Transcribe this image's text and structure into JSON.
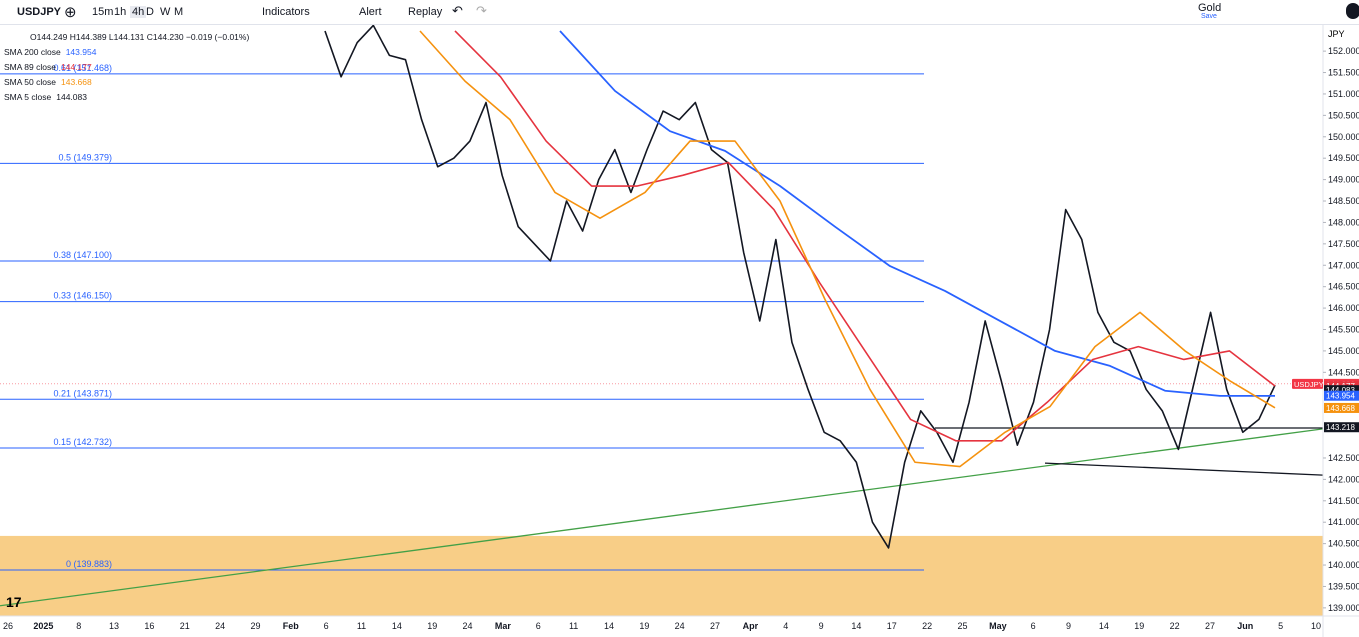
{
  "toolbar": {
    "symbol": "USDJPY",
    "intervals": [
      "15m",
      "1h",
      "4h",
      "D",
      "W",
      "M"
    ],
    "indicators": "Indicators",
    "alert": "Alert",
    "replay": "Replay",
    "layout_name": "Gold",
    "save": "Save"
  },
  "legend": {
    "ohlc": "O144.249 H144.389 L144.131 C144.230 −0.019 (−0.01%)",
    "studies": [
      {
        "name": "SMA 200 close",
        "value": "143.954",
        "color": "#2962ff"
      },
      {
        "name": "SMA 89 close",
        "value": "144.177",
        "color": "#e5343f"
      },
      {
        "name": "SMA 50 close",
        "value": "143.668",
        "color": "#f5920f"
      },
      {
        "name": "SMA 5 close",
        "value": "144.083",
        "color": "#131722"
      }
    ]
  },
  "chart_data": {
    "type": "line",
    "currency": "JPY",
    "ylim": [
      138.81,
      152.61
    ],
    "yticks": [
      {
        "value": 152,
        "label": "152.000"
      },
      {
        "value": 151.5,
        "label": "151.500"
      },
      {
        "value": 151,
        "label": "151.000"
      },
      {
        "value": 150.5,
        "label": "150.500"
      },
      {
        "value": 150,
        "label": "150.000"
      },
      {
        "value": 149.5,
        "label": "149.500"
      },
      {
        "value": 149,
        "label": "149.000"
      },
      {
        "value": 148.5,
        "label": "148.500"
      },
      {
        "value": 148,
        "label": "148.000"
      },
      {
        "value": 147.5,
        "label": "147.500"
      },
      {
        "value": 147,
        "label": "147.000"
      },
      {
        "value": 146.5,
        "label": "146.500"
      },
      {
        "value": 146,
        "label": "146.000"
      },
      {
        "value": 145.5,
        "label": "145.500"
      },
      {
        "value": 145,
        "label": "145.000"
      },
      {
        "value": 144.5,
        "label": "144.500"
      },
      {
        "value": 142.5,
        "label": "142.500"
      },
      {
        "value": 142,
        "label": "142.000"
      },
      {
        "value": 141.5,
        "label": "141.500"
      },
      {
        "value": 141,
        "label": "141.000"
      },
      {
        "value": 140.5,
        "label": "140.500"
      },
      {
        "value": 140,
        "label": "140.000"
      },
      {
        "value": 139.5,
        "label": "139.500"
      },
      {
        "value": 139,
        "label": "139.000"
      }
    ],
    "time_labels": [
      "26",
      "2025",
      "8",
      "13",
      "16",
      "21",
      "24",
      "29",
      "Feb",
      "6",
      "11",
      "14",
      "19",
      "24",
      "Mar",
      "6",
      "11",
      "14",
      "19",
      "24",
      "27",
      "Apr",
      "4",
      "9",
      "14",
      "17",
      "22",
      "25",
      "May",
      "6",
      "9",
      "14",
      "19",
      "22",
      "27",
      "Jun",
      "5",
      "10"
    ],
    "series": [
      {
        "name": "USDJPY",
        "color": "#131722",
        "values": [
          152.47,
          151.4,
          152.2,
          152.6,
          151.9,
          151.8,
          150.4,
          149.3,
          149.5,
          149.9,
          150.8,
          149.1,
          147.9,
          147.5,
          147.1,
          148.5,
          147.8,
          149.0,
          149.7,
          148.7,
          149.7,
          150.6,
          150.4,
          150.8,
          149.7,
          149.4,
          147.3,
          145.7,
          147.6,
          145.2,
          144.1,
          143.1,
          142.9,
          142.4,
          141.0,
          140.4,
          142.4,
          143.6,
          143.1,
          142.4,
          143.8,
          145.7,
          144.3,
          142.8,
          143.8,
          145.5,
          148.3,
          147.6,
          145.9,
          145.2,
          145.0,
          144.1,
          143.6,
          142.7,
          144.3,
          145.9,
          144.1,
          143.1,
          143.4,
          144.2
        ]
      },
      {
        "name": "SMA 200 close",
        "color": "#2962ff",
        "values": [
          152.47,
          151.07,
          150.13,
          149.67,
          148.85,
          147.9,
          146.98,
          146.4,
          145.7,
          145.0,
          144.65,
          144.07,
          143.95,
          143.95
        ]
      },
      {
        "name": "SMA 89 close",
        "color": "#e5343f",
        "values": [
          152.47,
          151.4,
          149.9,
          148.85,
          148.85,
          149.1,
          149.4,
          148.3,
          146.6,
          145.0,
          143.4,
          142.9,
          142.9,
          143.8,
          144.8,
          145.1,
          144.8,
          145.0,
          144.18
        ]
      },
      {
        "name": "SMA 50 close",
        "color": "#f5920f",
        "values": [
          152.47,
          151.3,
          150.4,
          148.7,
          148.1,
          148.7,
          149.9,
          149.9,
          148.5,
          146.2,
          144.1,
          142.4,
          142.3,
          143.1,
          143.7,
          145.1,
          145.9,
          145.0,
          144.3,
          143.67
        ]
      }
    ],
    "fib_levels": [
      {
        "value": 151.468,
        "label": "0.61 (151.468)"
      },
      {
        "value": 149.379,
        "label": "0.5 (149.379)"
      },
      {
        "value": 147.1,
        "label": "0.38 (147.100)"
      },
      {
        "value": 146.15,
        "label": "0.33 (146.150)"
      },
      {
        "value": 143.871,
        "label": "0.21 (143.871)"
      },
      {
        "value": 142.732,
        "label": "0.15 (142.732)"
      },
      {
        "value": 139.883,
        "label": "0 (139.883)"
      }
    ],
    "fib_color": "#2962ff",
    "zone": {
      "color": "#f7c97a",
      "top": 140.68
    },
    "trendlines": [
      {
        "color": "#43a047",
        "values": [
          139.05,
          143.18
        ]
      },
      {
        "color": "#131722",
        "values": [
          143.2,
          143.2
        ]
      },
      {
        "color": "#131722",
        "values": [
          142.38,
          142.1
        ]
      }
    ],
    "last_price_line": {
      "value": 144.23,
      "color": "#f23645"
    },
    "price_badges": [
      {
        "name": "USDJPY",
        "value": 144.23,
        "label": "144.230",
        "color": "#f23645"
      },
      {
        "value": 144.177,
        "label": "144.177",
        "color": "#e5343f"
      },
      {
        "value": 144.083,
        "label": "144.083",
        "color": "#131722"
      },
      {
        "value": 143.954,
        "label": "143.954",
        "color": "#2962ff"
      },
      {
        "value": 143.668,
        "label": "143.668",
        "color": "#f5920f"
      },
      {
        "value": 143.218,
        "label": "143.218",
        "color": "#131722"
      }
    ]
  }
}
